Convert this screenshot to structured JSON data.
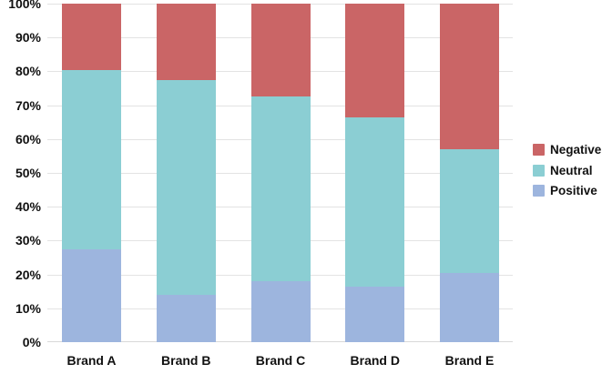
{
  "chart_data": {
    "type": "bar",
    "stacked": true,
    "categories": [
      "Brand A",
      "Brand B",
      "Brand C",
      "Brand D",
      "Brand E"
    ],
    "series": [
      {
        "name": "Positive",
        "color": "#9db5de",
        "values": [
          27.5,
          14,
          18,
          16.5,
          20.5
        ]
      },
      {
        "name": "Neutral",
        "color": "#8bced3",
        "values": [
          53,
          63.5,
          54.5,
          50,
          36.5
        ]
      },
      {
        "name": "Negative",
        "color": "#ca6566",
        "values": [
          19.5,
          22.5,
          27.5,
          33.5,
          43
        ]
      }
    ],
    "yticks": [
      "0%",
      "10%",
      "20%",
      "30%",
      "40%",
      "50%",
      "60%",
      "70%",
      "80%",
      "90%",
      "100%"
    ],
    "ylim": [
      0,
      100
    ],
    "grid": true,
    "legend_position": "right",
    "legend": [
      {
        "label": "Negative",
        "color": "#ca6566"
      },
      {
        "label": "Neutral",
        "color": "#8bced3"
      },
      {
        "label": "Positive",
        "color": "#9db5de"
      }
    ]
  },
  "colors": {
    "background": "#ffffff",
    "gridline": "#e3e3e3",
    "axis_line": "#d8d8d8",
    "text": "#111111"
  }
}
